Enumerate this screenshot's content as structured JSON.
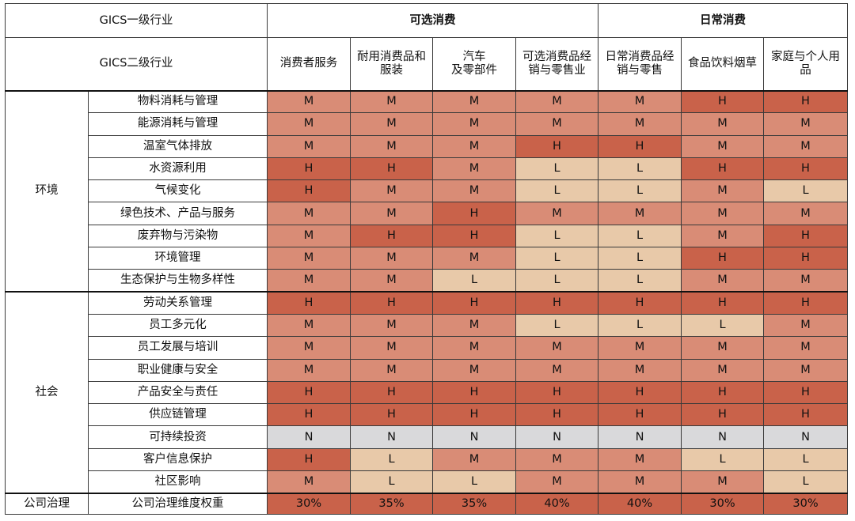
{
  "header": {
    "level1_label": "GICS一级行业",
    "level2_label": "GICS二级行业",
    "sector_groups": [
      {
        "name": "可选消费",
        "span": 4
      },
      {
        "name": "日常消费",
        "span": 3
      }
    ],
    "subsectors": [
      "消费者服务",
      "耐用消费品和\n服装",
      "汽车\n及零部件",
      "可选消费品经\n销与零售业",
      "日常消费品经\n销与零售",
      "食品饮料烟草",
      "家庭与个人用\n品"
    ]
  },
  "categories": [
    {
      "name": "环境",
      "rows": [
        {
          "indicator": "物料消耗与管理",
          "values": [
            "M",
            "M",
            "M",
            "M",
            "M",
            "H",
            "H"
          ]
        },
        {
          "indicator": "能源消耗与管理",
          "values": [
            "M",
            "M",
            "M",
            "M",
            "M",
            "M",
            "M"
          ]
        },
        {
          "indicator": "温室气体排放",
          "values": [
            "M",
            "M",
            "M",
            "H",
            "H",
            "M",
            "M"
          ]
        },
        {
          "indicator": "水资源利用",
          "values": [
            "H",
            "H",
            "M",
            "L",
            "L",
            "H",
            "H"
          ]
        },
        {
          "indicator": "气候变化",
          "values": [
            "H",
            "M",
            "M",
            "L",
            "L",
            "M",
            "L"
          ]
        },
        {
          "indicator": "绿色技术、产品与服务",
          "values": [
            "M",
            "M",
            "H",
            "M",
            "M",
            "M",
            "M"
          ]
        },
        {
          "indicator": "废弃物与污染物",
          "values": [
            "M",
            "H",
            "H",
            "L",
            "L",
            "M",
            "H"
          ]
        },
        {
          "indicator": "环境管理",
          "values": [
            "M",
            "M",
            "M",
            "L",
            "L",
            "H",
            "H"
          ]
        },
        {
          "indicator": "生态保护与生物多样性",
          "values": [
            "M",
            "M",
            "L",
            "L",
            "L",
            "M",
            "M"
          ]
        }
      ]
    },
    {
      "name": "社会",
      "rows": [
        {
          "indicator": "劳动关系管理",
          "values": [
            "H",
            "H",
            "H",
            "H",
            "H",
            "H",
            "H"
          ]
        },
        {
          "indicator": "员工多元化",
          "values": [
            "M",
            "M",
            "M",
            "L",
            "L",
            "L",
            "M"
          ]
        },
        {
          "indicator": "员工发展与培训",
          "values": [
            "M",
            "M",
            "M",
            "M",
            "M",
            "M",
            "M"
          ]
        },
        {
          "indicator": "职业健康与安全",
          "values": [
            "M",
            "M",
            "M",
            "M",
            "M",
            "M",
            "M"
          ]
        },
        {
          "indicator": "产品安全与责任",
          "values": [
            "H",
            "H",
            "H",
            "H",
            "H",
            "H",
            "H"
          ]
        },
        {
          "indicator": "供应链管理",
          "values": [
            "H",
            "H",
            "H",
            "H",
            "H",
            "H",
            "H"
          ]
        },
        {
          "indicator": "可持续投资",
          "values": [
            "N",
            "N",
            "N",
            "N",
            "N",
            "N",
            "N"
          ]
        },
        {
          "indicator": "客户信息保护",
          "values": [
            "H",
            "L",
            "M",
            "M",
            "M",
            "L",
            "L"
          ]
        },
        {
          "indicator": "社区影响",
          "values": [
            "M",
            "L",
            "L",
            "M",
            "M",
            "M",
            "L"
          ]
        }
      ]
    },
    {
      "name": "公司治理",
      "rows": [
        {
          "indicator": "公司治理维度权重",
          "values": [
            "30%",
            "35%",
            "35%",
            "40%",
            "40%",
            "30%",
            "30%"
          ],
          "weight": true
        }
      ]
    }
  ],
  "colors": {
    "H": "#c9624a",
    "M": "#d98c76",
    "L": "#e8c9a9",
    "N": "#d9d9db",
    "weight": "#c9624a"
  }
}
